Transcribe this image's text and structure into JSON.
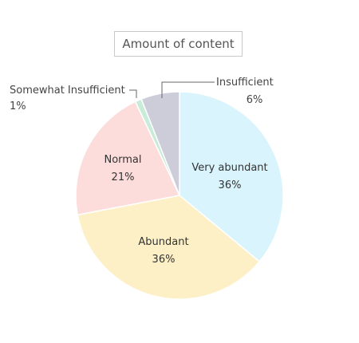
{
  "chart_data": {
    "type": "pie",
    "title": "Amount of content",
    "slices": [
      {
        "label": "Very abundant",
        "value": 36,
        "display": "36%",
        "color": "#d9f4fc"
      },
      {
        "label": "Abundant",
        "value": 36,
        "display": "36%",
        "color": "#fdf0c6"
      },
      {
        "label": "Normal",
        "value": 21,
        "display": "21%",
        "color": "#fddcdc"
      },
      {
        "label": "Somewhat Insufficient",
        "value": 1,
        "display": "1%",
        "color": "#c8ecd8"
      },
      {
        "label": "Insufficient",
        "value": 6,
        "display": "6%",
        "color": "#cccdd9"
      }
    ]
  }
}
